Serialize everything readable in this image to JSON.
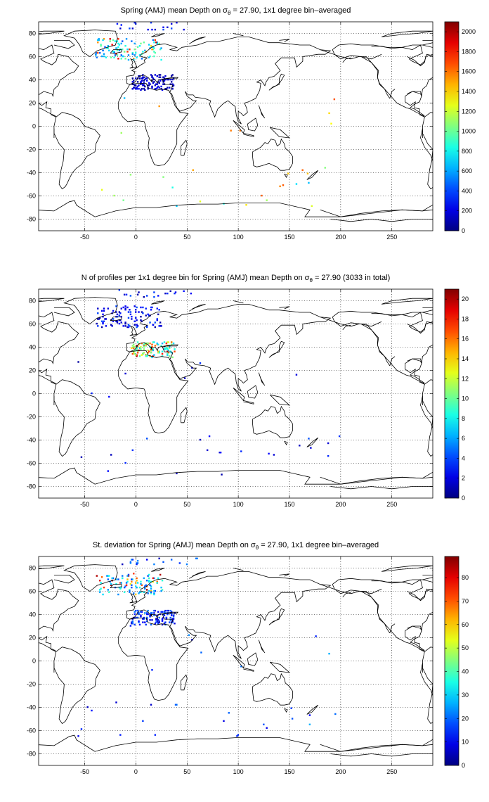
{
  "figure": {
    "panels": [
      {
        "title_parts": [
          "Spring (AMJ) mean Depth on ",
          "σ",
          "θ",
          " = 27.90, 1x1 degree bin–averaged"
        ],
        "colorbar": {
          "min": 0,
          "max": 2100,
          "ticks": [
            "2000",
            "1800",
            "1600",
            "1400",
            "1200",
            "1000",
            "800",
            "600",
            "400",
            "200",
            "0"
          ]
        }
      },
      {
        "title_parts": [
          "N of profiles per 1x1 degree bin for Spring (AMJ) mean Depth on ",
          "σ",
          "θ",
          " = 27.90 (3033 in total)"
        ],
        "colorbar": {
          "min": 0,
          "max": 21,
          "ticks": [
            "20",
            "18",
            "16",
            "14",
            "12",
            "10",
            "8",
            "6",
            "4",
            "2",
            "0"
          ]
        }
      },
      {
        "title_parts": [
          "St. deviation for Spring (AMJ) mean Depth on ",
          "σ",
          "θ",
          " = 27.90, 1x1 degree bin–averaged"
        ],
        "colorbar": {
          "min": 0,
          "max": 89,
          "ticks": [
            "80",
            "70",
            "60",
            "50",
            "40",
            "30",
            "20",
            "10",
            "0"
          ]
        }
      }
    ],
    "axes": {
      "x_ticks": [
        "-50",
        "0",
        "50",
        "100",
        "150",
        "200",
        "250"
      ],
      "y_ticks": [
        "80",
        "60",
        "40",
        "20",
        "0",
        "-20",
        "-40",
        "-60",
        "-80"
      ],
      "xlim": [
        -95,
        290
      ],
      "ylim": [
        -90,
        90
      ],
      "grid": true,
      "grid_style": "dotted",
      "colormap": "jet"
    }
  }
}
